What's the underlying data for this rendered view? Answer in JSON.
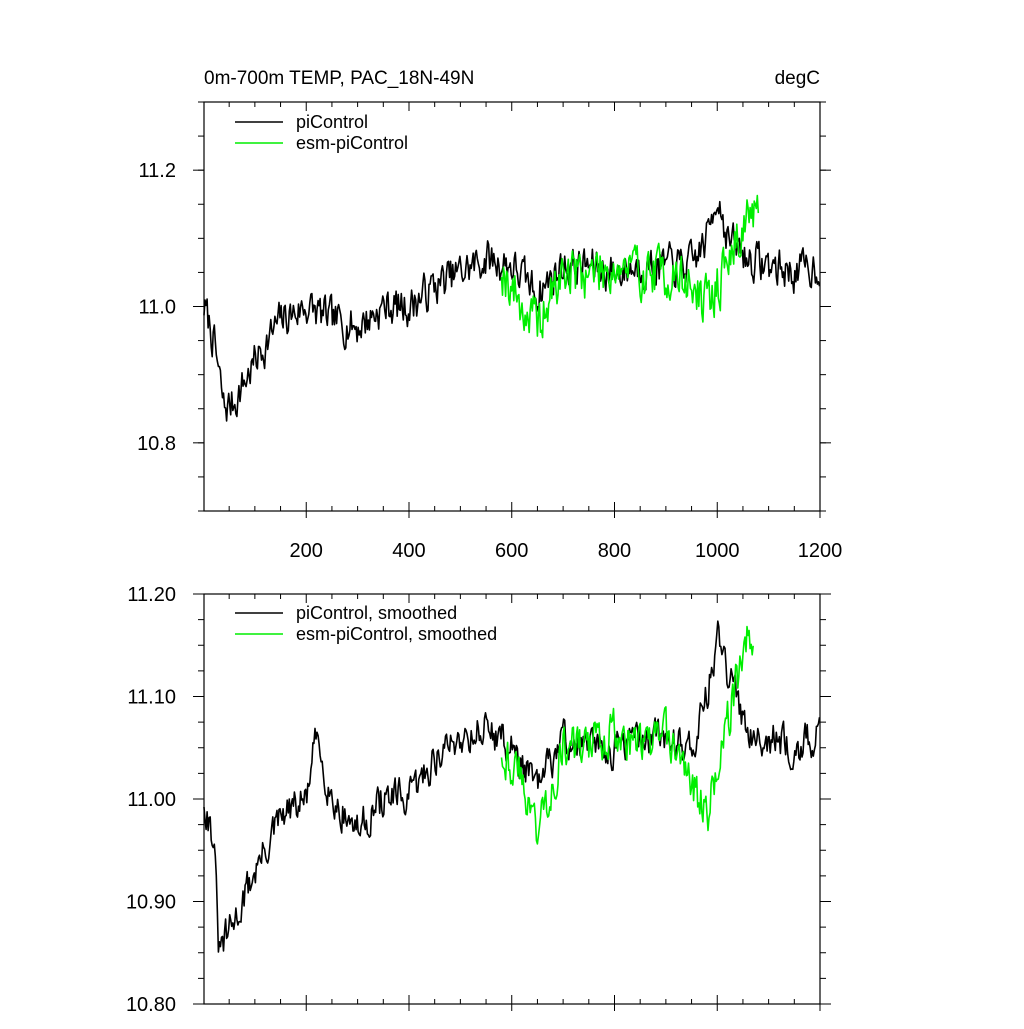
{
  "chart_data": [
    {
      "type": "line",
      "title_left": "0m-700m TEMP, PAC_18N-49N",
      "title_right": "degC",
      "xlabel": "",
      "ylabel": "",
      "xlim": [
        1,
        1200
      ],
      "ylim": [
        10.7,
        11.3
      ],
      "xticks": [
        200,
        400,
        600,
        800,
        1000,
        1200
      ],
      "xtick_labels": [
        "200",
        "400",
        "600",
        "800",
        "1000",
        "1200"
      ],
      "yticks": [
        10.8,
        11.0,
        11.2
      ],
      "ytick_labels": [
        "10.8",
        "11.0",
        "11.2"
      ],
      "legend_position": "top-left",
      "series": [
        {
          "name": "piControl",
          "color": "#000000",
          "seed": 7,
          "noise": 0.045,
          "anchors": [
            [
              1,
              11.0
            ],
            [
              20,
              10.95
            ],
            [
              40,
              10.85
            ],
            [
              60,
              10.86
            ],
            [
              100,
              10.92
            ],
            [
              150,
              10.98
            ],
            [
              200,
              11.0
            ],
            [
              250,
              10.98
            ],
            [
              300,
              10.97
            ],
            [
              350,
              11.0
            ],
            [
              400,
              11.0
            ],
            [
              450,
              11.03
            ],
            [
              500,
              11.05
            ],
            [
              550,
              11.07
            ],
            [
              600,
              11.06
            ],
            [
              650,
              11.02
            ],
            [
              700,
              11.06
            ],
            [
              750,
              11.06
            ],
            [
              800,
              11.05
            ],
            [
              850,
              11.06
            ],
            [
              900,
              11.06
            ],
            [
              950,
              11.06
            ],
            [
              980,
              11.1
            ],
            [
              1000,
              11.17
            ],
            [
              1020,
              11.1
            ],
            [
              1060,
              11.07
            ],
            [
              1100,
              11.06
            ],
            [
              1150,
              11.05
            ],
            [
              1200,
              11.06
            ]
          ]
        },
        {
          "name": "esm-piControl",
          "color": "#00ee00",
          "seed": 19,
          "noise": 0.06,
          "anchors": [
            [
              580,
              11.06
            ],
            [
              620,
              11.0
            ],
            [
              650,
              10.97
            ],
            [
              700,
              11.05
            ],
            [
              750,
              11.05
            ],
            [
              800,
              11.06
            ],
            [
              850,
              11.05
            ],
            [
              900,
              11.05
            ],
            [
              950,
              11.03
            ],
            [
              980,
              11.0
            ],
            [
              1000,
              11.03
            ],
            [
              1040,
              11.1
            ],
            [
              1060,
              11.14
            ],
            [
              1080,
              11.12
            ]
          ]
        }
      ]
    },
    {
      "type": "line",
      "title_left": "",
      "title_right": "",
      "xlabel": "",
      "ylabel": "",
      "xlim": [
        1,
        1200
      ],
      "ylim": [
        10.8,
        11.2
      ],
      "xticks": [
        200,
        400,
        600,
        800,
        1000,
        1200
      ],
      "xtick_labels": [],
      "yticks": [
        10.8,
        10.9,
        11.0,
        11.1,
        11.2
      ],
      "ytick_labels": [
        "10.80",
        "10.90",
        "11.00",
        "11.10",
        "11.20"
      ],
      "legend_position": "top-left",
      "series": [
        {
          "name": "piControl, smoothed",
          "color": "#000000",
          "seed": 31,
          "noise": 0.028,
          "anchors": [
            [
              1,
              11.0
            ],
            [
              20,
              10.96
            ],
            [
              30,
              10.85
            ],
            [
              60,
              10.88
            ],
            [
              100,
              10.93
            ],
            [
              150,
              10.98
            ],
            [
              200,
              11.0
            ],
            [
              220,
              11.06
            ],
            [
              250,
              11.0
            ],
            [
              300,
              10.97
            ],
            [
              350,
              11.0
            ],
            [
              400,
              11.0
            ],
            [
              450,
              11.04
            ],
            [
              500,
              11.06
            ],
            [
              550,
              11.07
            ],
            [
              600,
              11.05
            ],
            [
              650,
              11.01
            ],
            [
              700,
              11.06
            ],
            [
              750,
              11.05
            ],
            [
              800,
              11.05
            ],
            [
              850,
              11.06
            ],
            [
              900,
              11.06
            ],
            [
              950,
              11.05
            ],
            [
              980,
              11.1
            ],
            [
              1000,
              11.16
            ],
            [
              1020,
              11.12
            ],
            [
              1060,
              11.07
            ],
            [
              1100,
              11.06
            ],
            [
              1150,
              11.05
            ],
            [
              1200,
              11.06
            ]
          ]
        },
        {
          "name": "esm-piControl, smoothed",
          "color": "#00ee00",
          "seed": 43,
          "noise": 0.035,
          "anchors": [
            [
              580,
              11.05
            ],
            [
              620,
              11.02
            ],
            [
              650,
              10.97
            ],
            [
              700,
              11.05
            ],
            [
              750,
              11.05
            ],
            [
              800,
              11.07
            ],
            [
              850,
              11.05
            ],
            [
              900,
              11.06
            ],
            [
              950,
              11.02
            ],
            [
              980,
              10.98
            ],
            [
              1000,
              11.03
            ],
            [
              1040,
              11.12
            ],
            [
              1060,
              11.16
            ],
            [
              1070,
              11.14
            ]
          ]
        }
      ]
    }
  ]
}
